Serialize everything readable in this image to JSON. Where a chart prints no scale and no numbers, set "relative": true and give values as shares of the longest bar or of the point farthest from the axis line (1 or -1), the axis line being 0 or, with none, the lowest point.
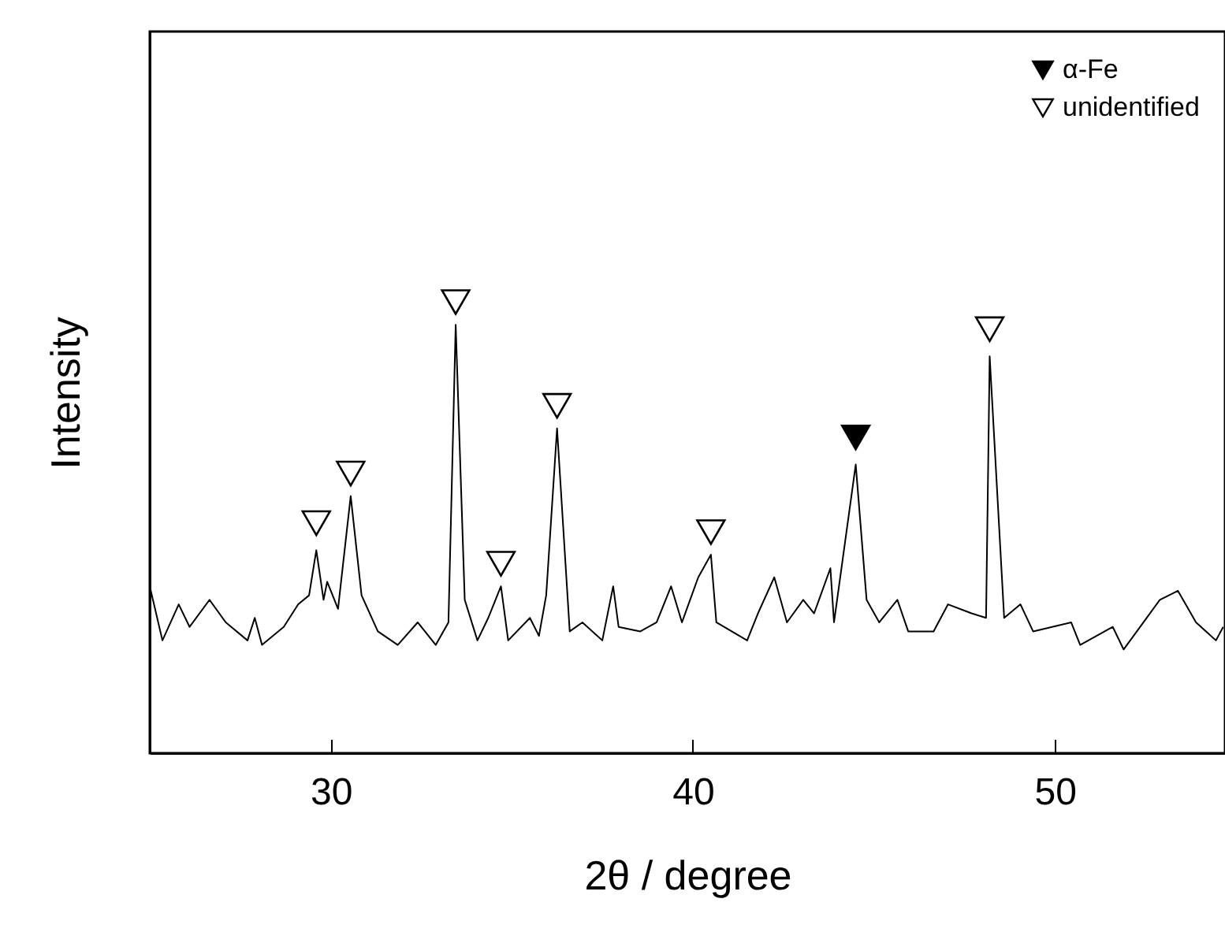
{
  "chart_data": {
    "type": "line",
    "xlabel": "2θ / degree",
    "ylabel": "Intensity",
    "relative": true,
    "xlim": [
      25,
      54.7
    ],
    "xticks": [
      30,
      40,
      50
    ],
    "legend": "top right",
    "grid": false,
    "series": [
      {
        "color": "#000000",
        "x": [
          25.0,
          25.35,
          25.8,
          26.1,
          26.65,
          27.1,
          27.7,
          27.9,
          28.1,
          28.7,
          29.1,
          29.4,
          29.6,
          29.8,
          29.9,
          30.2,
          30.55,
          30.85,
          31.3,
          31.85,
          32.4,
          32.9,
          33.25,
          33.45,
          33.7,
          34.05,
          34.35,
          34.7,
          34.9,
          35.5,
          35.75,
          35.95,
          36.25,
          36.6,
          36.95,
          37.5,
          37.8,
          37.95,
          38.55,
          39.0,
          39.4,
          39.7,
          40.15,
          40.5,
          40.65,
          41.5,
          41.8,
          42.25,
          42.6,
          43.05,
          43.35,
          43.8,
          43.9,
          44.5,
          44.8,
          45.15,
          45.65,
          45.95,
          46.65,
          47.05,
          47.7,
          48.1,
          48.2,
          48.6,
          49.05,
          49.4,
          50.45,
          50.7,
          51.6,
          51.9,
          52.9,
          53.4,
          53.9,
          54.45,
          54.65
        ],
        "values": [
          0.37,
          0.25,
          0.33,
          0.28,
          0.34,
          0.29,
          0.25,
          0.3,
          0.24,
          0.28,
          0.33,
          0.35,
          0.45,
          0.34,
          0.38,
          0.32,
          0.57,
          0.35,
          0.27,
          0.24,
          0.29,
          0.24,
          0.29,
          0.95,
          0.34,
          0.25,
          0.3,
          0.37,
          0.25,
          0.3,
          0.26,
          0.35,
          0.72,
          0.27,
          0.29,
          0.25,
          0.37,
          0.28,
          0.27,
          0.29,
          0.37,
          0.29,
          0.39,
          0.44,
          0.29,
          0.25,
          0.31,
          0.39,
          0.29,
          0.34,
          0.31,
          0.41,
          0.29,
          0.64,
          0.34,
          0.29,
          0.34,
          0.27,
          0.27,
          0.33,
          0.31,
          0.3,
          0.88,
          0.3,
          0.33,
          0.27,
          0.29,
          0.24,
          0.28,
          0.23,
          0.34,
          0.36,
          0.29,
          0.25,
          0.28
        ]
      },
      {
        "name": "α-Fe",
        "type": "scatter",
        "marker": "triangle",
        "color": "#000000",
        "x": [
          44.5
        ],
        "values": [
          0.7
        ]
      },
      {
        "name": "unidentified",
        "type": "scatter",
        "marker": "triangle",
        "color": "#ffffff",
        "x": [
          29.6,
          30.55,
          33.45,
          34.7,
          36.25,
          40.5,
          48.2
        ],
        "values": [
          0.51,
          0.62,
          1.0,
          0.42,
          0.77,
          0.49,
          0.94
        ]
      }
    ]
  }
}
